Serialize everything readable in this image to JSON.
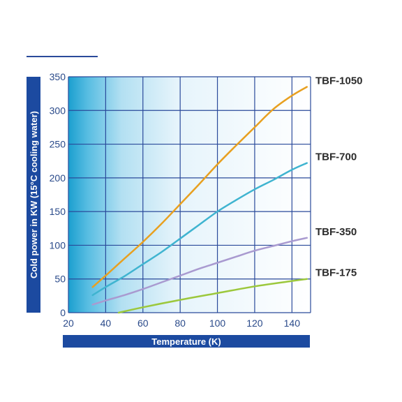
{
  "chart_data": {
    "type": "line",
    "title": "",
    "xlabel": "Temperature (K)",
    "ylabel": "Cold power in KW (15°C cooling water)",
    "xlim": [
      20,
      150
    ],
    "ylim": [
      0,
      350
    ],
    "x_ticks": [
      20,
      40,
      60,
      80,
      100,
      120,
      140
    ],
    "y_ticks": [
      0,
      50,
      100,
      150,
      200,
      250,
      300,
      350
    ],
    "grid": true,
    "legend": "none (labels at line ends, right side)",
    "series": [
      {
        "name": "TBF-1050",
        "color": "#e8a020",
        "points": [
          [
            33,
            38
          ],
          [
            40,
            55
          ],
          [
            50,
            80
          ],
          [
            60,
            105
          ],
          [
            70,
            132
          ],
          [
            80,
            161
          ],
          [
            90,
            190
          ],
          [
            100,
            220
          ],
          [
            110,
            248
          ],
          [
            120,
            275
          ],
          [
            130,
            302
          ],
          [
            140,
            322
          ],
          [
            148,
            335
          ]
        ]
      },
      {
        "name": "TBF-700",
        "color": "#3fb4d0",
        "points": [
          [
            33,
            26
          ],
          [
            40,
            38
          ],
          [
            50,
            54
          ],
          [
            60,
            72
          ],
          [
            70,
            90
          ],
          [
            80,
            110
          ],
          [
            90,
            130
          ],
          [
            100,
            150
          ],
          [
            110,
            167
          ],
          [
            120,
            183
          ],
          [
            130,
            197
          ],
          [
            140,
            212
          ],
          [
            148,
            222
          ]
        ]
      },
      {
        "name": "TBF-350",
        "color": "#a99ad0",
        "points": [
          [
            33,
            12
          ],
          [
            40,
            18
          ],
          [
            50,
            26
          ],
          [
            60,
            35
          ],
          [
            70,
            45
          ],
          [
            80,
            55
          ],
          [
            90,
            65
          ],
          [
            100,
            74
          ],
          [
            110,
            83
          ],
          [
            120,
            92
          ],
          [
            130,
            99
          ],
          [
            140,
            106
          ],
          [
            148,
            111
          ]
        ]
      },
      {
        "name": "TBF-175",
        "color": "#9cc83c",
        "points": [
          [
            47,
            0
          ],
          [
            60,
            8
          ],
          [
            80,
            19
          ],
          [
            100,
            29
          ],
          [
            120,
            39
          ],
          [
            140,
            47
          ],
          [
            148,
            50
          ]
        ]
      }
    ]
  }
}
